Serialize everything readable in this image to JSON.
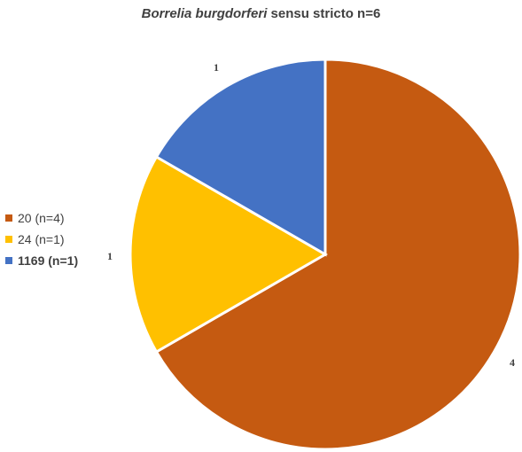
{
  "chart_data": {
    "type": "pie",
    "title": {
      "italic_part": "Borrelia burgdorferi",
      "rest": " sensu stricto n=6"
    },
    "start_angle_deg": 0,
    "direction": "clockwise",
    "slices": [
      {
        "label": "20 (n=4)",
        "value": 4,
        "data_label": "4",
        "color": "#C55A11",
        "legend_bold": false
      },
      {
        "label": "24 (n=1)",
        "value": 1,
        "data_label": "1",
        "color": "#FFC000",
        "legend_bold": false
      },
      {
        "label": "1169 (n=1)",
        "value": 1,
        "data_label": "1",
        "color": "#4472C4",
        "legend_bold": true
      }
    ],
    "legend_position": "left"
  }
}
